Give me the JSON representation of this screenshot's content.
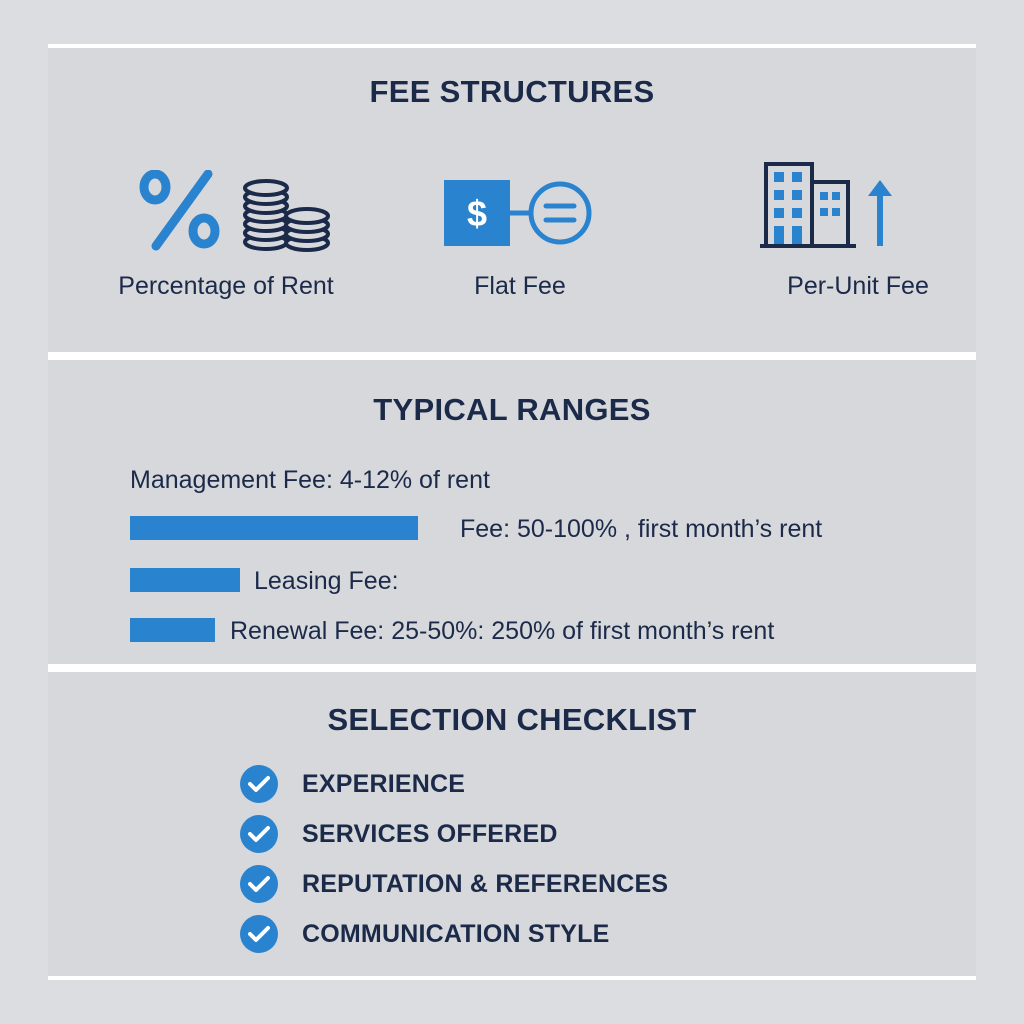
{
  "fee_structures": {
    "title": "FEE STRUCTURES",
    "items": [
      {
        "label": "Percentage of Rent",
        "icon": "percent-coins-icon"
      },
      {
        "label": "Flat Fee",
        "icon": "dollar-equals-icon"
      },
      {
        "label": "Per-Unit Fee",
        "icon": "building-arrow-icon"
      }
    ]
  },
  "typical_ranges": {
    "title": "TYPICAL RANGES",
    "management": "Management Fee: 4-12% of rent",
    "rows": [
      {
        "label": "Fee: 50-100% , first month’s rent"
      },
      {
        "label": "Leasing Fee:"
      },
      {
        "label": "Renewal Fee: 25-50%: 250% of first month’s rent"
      }
    ]
  },
  "checklist": {
    "title": "SELECTION CHECKLIST",
    "items": [
      "EXPERIENCE",
      "SERVICES OFFERED",
      "REPUTATION & REFERENCES",
      "COMMUNICATION STYLE"
    ]
  },
  "colors": {
    "accent": "#2a83cf",
    "navy": "#1c2a4a",
    "panel": "#d7d8db",
    "border": "#ffffff"
  }
}
